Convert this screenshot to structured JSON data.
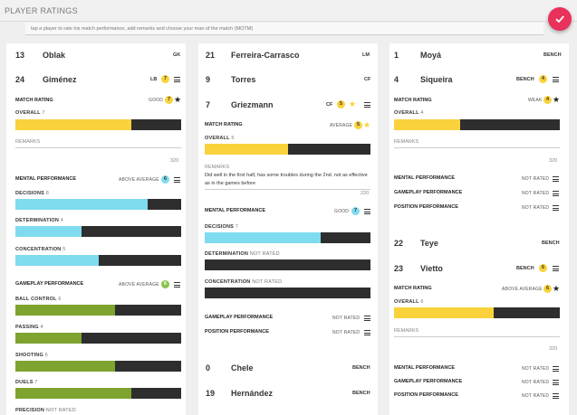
{
  "header": {
    "title": "PLAYER RATINGS",
    "hint": "tap a player to rate his match performance, add remarks and choose your man of the match (MOTM)"
  },
  "colors": {
    "overall": "#f9d23c",
    "mental": "#7fdbee",
    "gameplay": "#7ea32f",
    "empty": "#2e2e2e",
    "accent": "#e8315b"
  },
  "labels": {
    "match_rating": "MATCH RATING",
    "overall": "OVERALL",
    "remarks": "REMARKS",
    "mental": "MENTAL PERFORMANCE",
    "gameplay": "GAMEPLAY PERFORMANCE",
    "position": "POSITION PERFORMANCE",
    "decisions": "DECISIONS",
    "determination": "DETERMINATION",
    "concentration": "CONCENTRATION",
    "ball_control": "BALL CONTROL",
    "passing": "PASSING",
    "shooting": "SHOOTING",
    "duels": "DUELS",
    "precision": "PRECISION",
    "not_rated": "NOT RATED",
    "bench": "BENCH"
  },
  "col1": {
    "p1": {
      "num": "13",
      "name": "Oblak",
      "pos": "GK"
    },
    "p2": {
      "num": "24",
      "name": "Giménez",
      "pos": "LB",
      "rating": "7"
    },
    "match_text": "GOOD",
    "match_val": "7",
    "overall_val": "7",
    "overall_frac": 0.7,
    "remarks_count": "320",
    "mental_text": "ABOVE AVERAGE",
    "mental_val": "6",
    "decisions_val": "8",
    "decisions_frac": 0.8,
    "determination_val": "4",
    "determination_frac": 0.4,
    "concentration_val": "5",
    "concentration_frac": 0.5,
    "gameplay_text": "ABOVE AVERAGE",
    "gameplay_val": "6",
    "ball_val": "6",
    "ball_frac": 0.6,
    "passing_val": "4",
    "passing_frac": 0.4,
    "shooting_val": "6",
    "shooting_frac": 0.6,
    "duels_val": "7",
    "duels_frac": 0.7,
    "precision_val": "NOT RATED"
  },
  "col2": {
    "p1": {
      "num": "21",
      "name": "Ferreira-Carrasco",
      "pos": "LM"
    },
    "p2": {
      "num": "9",
      "name": "Torres",
      "pos": "CF"
    },
    "p3": {
      "num": "7",
      "name": "Griezmann",
      "pos": "CF",
      "rating": "5"
    },
    "match_text": "AVERAGE",
    "match_val": "5",
    "overall_val": "5",
    "overall_frac": 0.5,
    "remarks_text": "Did well in the first half, has some troubles during the 2nd. not as effective as in the games before",
    "remarks_count": "220",
    "mental_text": "GOOD",
    "mental_val": "7",
    "decisions_val": "7",
    "decisions_frac": 0.7,
    "determination_val": "NOT RATED",
    "concentration_val": "NOT RATED",
    "gameplay_status": "NOT RATED",
    "position_status": "NOT RATED",
    "p4": {
      "num": "0",
      "name": "Chele",
      "pos": "BENCH"
    },
    "p5": {
      "num": "19",
      "name": "Hernández",
      "pos": "BENCH"
    }
  },
  "col3": {
    "p1": {
      "num": "1",
      "name": "Moyá",
      "pos": "BENCH"
    },
    "p2": {
      "num": "4",
      "name": "Siqueira",
      "pos": "BENCH",
      "rating": "4"
    },
    "match_text": "WEAK",
    "match_val": "4",
    "overall_val": "4",
    "overall_frac": 0.4,
    "remarks_count": "320",
    "mental_status": "NOT RATED",
    "gameplay_status": "NOT RATED",
    "position_status": "NOT RATED",
    "p3": {
      "num": "22",
      "name": "Teye",
      "pos": "BENCH"
    },
    "p4": {
      "num": "23",
      "name": "Vietto",
      "pos": "BENCH",
      "rating": "6"
    },
    "match2_text": "ABOVE AVERAGE",
    "match2_val": "6",
    "overall2_val": "6",
    "overall2_frac": 0.6,
    "remarks2_count": "320",
    "mental2_status": "NOT RATED",
    "gameplay2_status": "NOT RATED",
    "position2_status": "NOT RATED"
  }
}
